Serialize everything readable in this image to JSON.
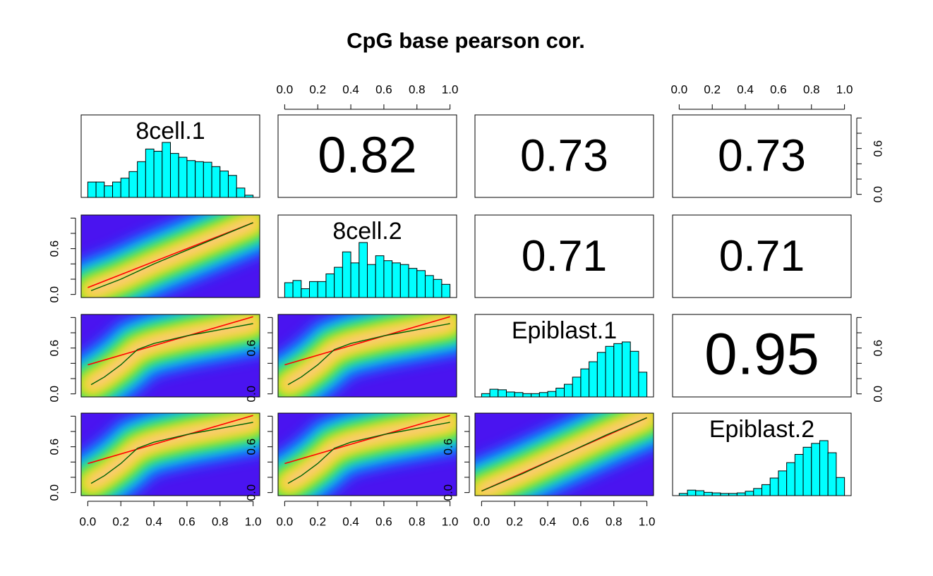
{
  "chart_data": {
    "type": "pairs",
    "title": "CpG base pearson cor.",
    "variables": [
      "8cell.1",
      "8cell.2",
      "Epiblast.1",
      "Epiblast.2"
    ],
    "xlim": [
      -0.04,
      1.04
    ],
    "ylim": [
      -0.04,
      1.04
    ],
    "xticks": [
      {
        "value": 0,
        "label": "0.0"
      },
      0.2,
      0.4,
      0.6,
      0.8,
      {
        "value": 1,
        "label": "1.0"
      }
    ],
    "yticks": [
      {
        "value": 0,
        "label": "0.0"
      },
      {
        "value": 0.2,
        "label": null
      },
      {
        "value": 0.4,
        "label": null
      },
      {
        "value": 0.6,
        "label": "0.6"
      },
      {
        "value": 0.8,
        "label": null
      },
      {
        "value": 1,
        "label": null
      }
    ],
    "hist_ylim": [
      0,
      1.5
    ],
    "hist_color": "#00ffff",
    "bins": [
      0,
      0.05,
      0.1,
      0.15,
      0.2,
      0.25,
      0.3,
      0.35,
      0.4,
      0.45,
      0.5,
      0.55,
      0.6,
      0.65,
      0.7,
      0.75,
      0.8,
      0.85,
      0.9,
      0.95,
      1
    ],
    "histograms": [
      [
        0.28,
        0.28,
        0.21,
        0.28,
        0.35,
        0.47,
        0.65,
        0.88,
        0.84,
        1,
        0.8,
        0.73,
        0.67,
        0.65,
        0.64,
        0.56,
        0.48,
        0.4,
        0.17,
        0.04
      ],
      [
        0.27,
        0.31,
        0.16,
        0.29,
        0.29,
        0.43,
        0.55,
        0.83,
        0.63,
        1,
        0.6,
        0.76,
        0.67,
        0.63,
        0.6,
        0.53,
        0.49,
        0.4,
        0.33,
        0.24
      ],
      [
        0.06,
        0.14,
        0.13,
        0.09,
        0.08,
        0.06,
        0.06,
        0.08,
        0.1,
        0.16,
        0.23,
        0.36,
        0.51,
        0.64,
        0.81,
        0.92,
        0.97,
        1,
        0.83,
        0.45
      ],
      [
        0.04,
        0.1,
        0.09,
        0.06,
        0.05,
        0.04,
        0.04,
        0.05,
        0.08,
        0.13,
        0.2,
        0.32,
        0.45,
        0.6,
        0.75,
        0.88,
        0.95,
        1,
        0.78,
        0.33
      ]
    ],
    "correlations": [
      [
        0.82,
        0.73,
        0.73
      ],
      [
        0.71,
        0.71
      ],
      [
        0.95
      ]
    ],
    "fit_color": "#ff0000",
    "smooth_color": "#006400",
    "fits": [
      [
        {
          "line": {
            "x": [
              0,
              1
            ],
            "y": [
              0.09,
              0.94
            ]
          },
          "smooth": {
            "x": [
              0.02,
              0.2,
              0.4,
              0.6,
              0.8,
              1
            ],
            "y": [
              0.05,
              0.2,
              0.4,
              0.58,
              0.76,
              0.94
            ]
          }
        }
      ],
      [
        {
          "line": {
            "x": [
              0,
              1
            ],
            "y": [
              0.38,
              1.01
            ]
          },
          "smooth": {
            "x": [
              0.02,
              0.1,
              0.2,
              0.3,
              0.4,
              0.5,
              0.6,
              0.7,
              0.8,
              0.9,
              1
            ],
            "y": [
              0.12,
              0.22,
              0.38,
              0.58,
              0.66,
              0.71,
              0.76,
              0.8,
              0.84,
              0.88,
              0.92
            ]
          }
        },
        {
          "line": {
            "x": [
              0,
              1
            ],
            "y": [
              0.38,
              1.01
            ]
          },
          "smooth": {
            "x": [
              0.02,
              0.1,
              0.2,
              0.3,
              0.4,
              0.5,
              0.6,
              0.7,
              0.8,
              0.9,
              1
            ],
            "y": [
              0.12,
              0.22,
              0.38,
              0.58,
              0.66,
              0.71,
              0.76,
              0.8,
              0.84,
              0.88,
              0.92
            ]
          }
        }
      ],
      [
        {
          "line": {
            "x": [
              0,
              1
            ],
            "y": [
              0.38,
              1.01
            ]
          },
          "smooth": {
            "x": [
              0.02,
              0.1,
              0.2,
              0.3,
              0.4,
              0.5,
              0.6,
              0.7,
              0.8,
              0.9,
              1
            ],
            "y": [
              0.12,
              0.22,
              0.38,
              0.58,
              0.66,
              0.71,
              0.76,
              0.8,
              0.84,
              0.88,
              0.92
            ]
          }
        },
        {
          "line": {
            "x": [
              0,
              1
            ],
            "y": [
              0.38,
              1.01
            ]
          },
          "smooth": {
            "x": [
              0.02,
              0.1,
              0.2,
              0.3,
              0.4,
              0.5,
              0.6,
              0.7,
              0.8,
              0.9,
              1
            ],
            "y": [
              0.12,
              0.22,
              0.38,
              0.58,
              0.66,
              0.71,
              0.76,
              0.8,
              0.84,
              0.88,
              0.92
            ]
          }
        },
        {
          "line": {
            "x": [
              0,
              1
            ],
            "y": [
              0.02,
              0.98
            ]
          },
          "smooth": {
            "x": [
              0,
              0.25,
              0.5,
              0.75,
              1
            ],
            "y": [
              0.02,
              0.25,
              0.5,
              0.75,
              0.98
            ]
          }
        }
      ]
    ]
  }
}
